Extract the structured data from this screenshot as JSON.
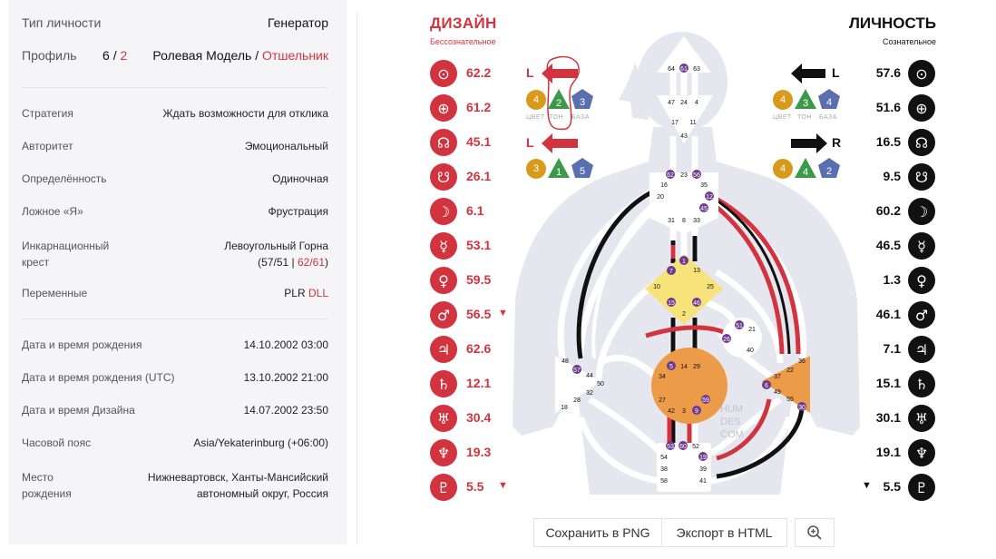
{
  "profile": {
    "type_label": "Тип личности",
    "type_value": "Генератор",
    "profile_label": "Профиль",
    "profile_a": "6",
    "profile_slash": "/",
    "profile_b": "2",
    "profile_name_a": "Ролевая Модель",
    "profile_name_slash": "/",
    "profile_name_b": "Отшельник"
  },
  "details": {
    "strategy_label": "Стратегия",
    "strategy_value": "Ждать возможности для отклика",
    "authority_label": "Авторитет",
    "authority_value": "Эмоциональный",
    "definition_label": "Определённость",
    "definition_value": "Одиночная",
    "notself_label": "Ложное «Я»",
    "notself_value": "Фрустрация",
    "cross_label_1": "Инкарнационный",
    "cross_label_2": "крест",
    "cross_value_1": "Левоугольный Горна",
    "cross_value_2a": "(57/51 | ",
    "cross_value_2b": "62/61",
    "cross_value_2c": ")",
    "variables_label": "Переменные",
    "variables_a": "PLR ",
    "variables_b": "DLL"
  },
  "birth": {
    "dt_label": "Дата и время рождения",
    "dt_value": "14.10.2002 03:00",
    "utc_label": "Дата и время рождения (UTC)",
    "utc_value": "13.10.2002 21:00",
    "design_label": "Дата и время Дизайна",
    "design_value": "14.07.2002 23:50",
    "tz_label": "Часовой пояс",
    "tz_value": "Asia/Yekaterinburg (+06:00)",
    "place_label_1": "Место",
    "place_label_2": "рождения",
    "place_value_1": "Нижневартовск, Ханты-Мансийский",
    "place_value_2": "автономный округ, Россия"
  },
  "design": {
    "title": "ДИЗАЙН",
    "subtitle": "Бессознательное",
    "color": "#d1343f",
    "planets": [
      {
        "icon": "sun-icon",
        "glyph": "⊙",
        "value": "62.2",
        "mark": ""
      },
      {
        "icon": "earth-icon",
        "glyph": "⊕",
        "value": "61.2",
        "mark": ""
      },
      {
        "icon": "north-node-icon",
        "glyph": "☊",
        "value": "45.1",
        "mark": ""
      },
      {
        "icon": "south-node-icon",
        "glyph": "☋",
        "value": "26.1",
        "mark": ""
      },
      {
        "icon": "moon-icon",
        "glyph": "☽",
        "value": "6.1",
        "mark": ""
      },
      {
        "icon": "mercury-icon",
        "glyph": "☿",
        "value": "53.1",
        "mark": ""
      },
      {
        "icon": "venus-icon",
        "glyph": "♀",
        "value": "59.5",
        "mark": ""
      },
      {
        "icon": "mars-icon",
        "glyph": "♂",
        "value": "56.5",
        "mark": "▼"
      },
      {
        "icon": "jupiter-icon",
        "glyph": "♃",
        "value": "62.6",
        "mark": ""
      },
      {
        "icon": "saturn-icon",
        "glyph": "♄",
        "value": "12.1",
        "mark": ""
      },
      {
        "icon": "uranus-icon",
        "glyph": "♅",
        "value": "30.4",
        "mark": ""
      },
      {
        "icon": "neptune-icon",
        "glyph": "♆",
        "value": "19.3",
        "mark": ""
      },
      {
        "icon": "pluto-icon",
        "glyph": "♇",
        "value": "5.5",
        "mark": "▼"
      }
    ],
    "arrow1": {
      "letter": "L",
      "color": "4",
      "tone": "2",
      "base": "3"
    },
    "arrow2": {
      "letter": "L",
      "color": "3",
      "tone": "1",
      "base": "5"
    },
    "ctb_labels": {
      "c": "ЦВЕТ",
      "t": "ТОН",
      "b": "БАЗА"
    }
  },
  "personality": {
    "title": "ЛИЧНОСТЬ",
    "subtitle": "Сознательное",
    "planets": [
      {
        "icon": "sun-icon",
        "glyph": "⊙",
        "value": "57.6",
        "mark": ""
      },
      {
        "icon": "earth-icon",
        "glyph": "⊕",
        "value": "51.6",
        "mark": ""
      },
      {
        "icon": "north-node-icon",
        "glyph": "☊",
        "value": "16.5",
        "mark": ""
      },
      {
        "icon": "south-node-icon",
        "glyph": "☋",
        "value": "9.5",
        "mark": ""
      },
      {
        "icon": "moon-icon",
        "glyph": "☽",
        "value": "60.2",
        "mark": ""
      },
      {
        "icon": "mercury-icon",
        "glyph": "☿",
        "value": "46.5",
        "mark": ""
      },
      {
        "icon": "venus-icon",
        "glyph": "♀",
        "value": "1.3",
        "mark": ""
      },
      {
        "icon": "mars-icon",
        "glyph": "♂",
        "value": "46.1",
        "mark": ""
      },
      {
        "icon": "jupiter-icon",
        "glyph": "♃",
        "value": "7.1",
        "mark": ""
      },
      {
        "icon": "saturn-icon",
        "glyph": "♄",
        "value": "15.1",
        "mark": ""
      },
      {
        "icon": "uranus-icon",
        "glyph": "♅",
        "value": "30.1",
        "mark": ""
      },
      {
        "icon": "neptune-icon",
        "glyph": "♆",
        "value": "19.1",
        "mark": ""
      },
      {
        "icon": "pluto-icon",
        "glyph": "♇",
        "value": "5.5",
        "mark": "▼"
      }
    ],
    "arrow1": {
      "letter": "L",
      "color": "4",
      "tone": "3",
      "base": "4"
    },
    "arrow2": {
      "letter": "R",
      "color": "4",
      "tone": "4",
      "base": "2"
    }
  },
  "bodygraph": {
    "watermark": [
      "HUM",
      "DES",
      "COM"
    ],
    "head": [
      "64",
      "61",
      "63"
    ],
    "ajna": [
      "47",
      "24",
      "4",
      "17",
      "11",
      "43"
    ],
    "throat": [
      "62",
      "23",
      "56",
      "16",
      "35",
      "20",
      "12",
      "45",
      "31",
      "8",
      "33"
    ],
    "g": [
      "1",
      "7",
      "13",
      "10",
      "25",
      "15",
      "46",
      "2"
    ],
    "heart": [
      "51",
      "21",
      "26",
      "40"
    ],
    "spleen": [
      "48",
      "57",
      "44",
      "50",
      "32",
      "28",
      "18"
    ],
    "sacral": [
      "5",
      "14",
      "29",
      "34",
      "27",
      "59",
      "42",
      "3",
      "9"
    ],
    "solar": [
      "36",
      "37",
      "22",
      "6",
      "49",
      "55",
      "30"
    ],
    "root": [
      "53",
      "60",
      "52",
      "54",
      "19",
      "38",
      "39",
      "58",
      "41"
    ]
  },
  "actions": {
    "save_png": "Сохранить в PNG",
    "export_html": "Экспорт в HTML"
  }
}
